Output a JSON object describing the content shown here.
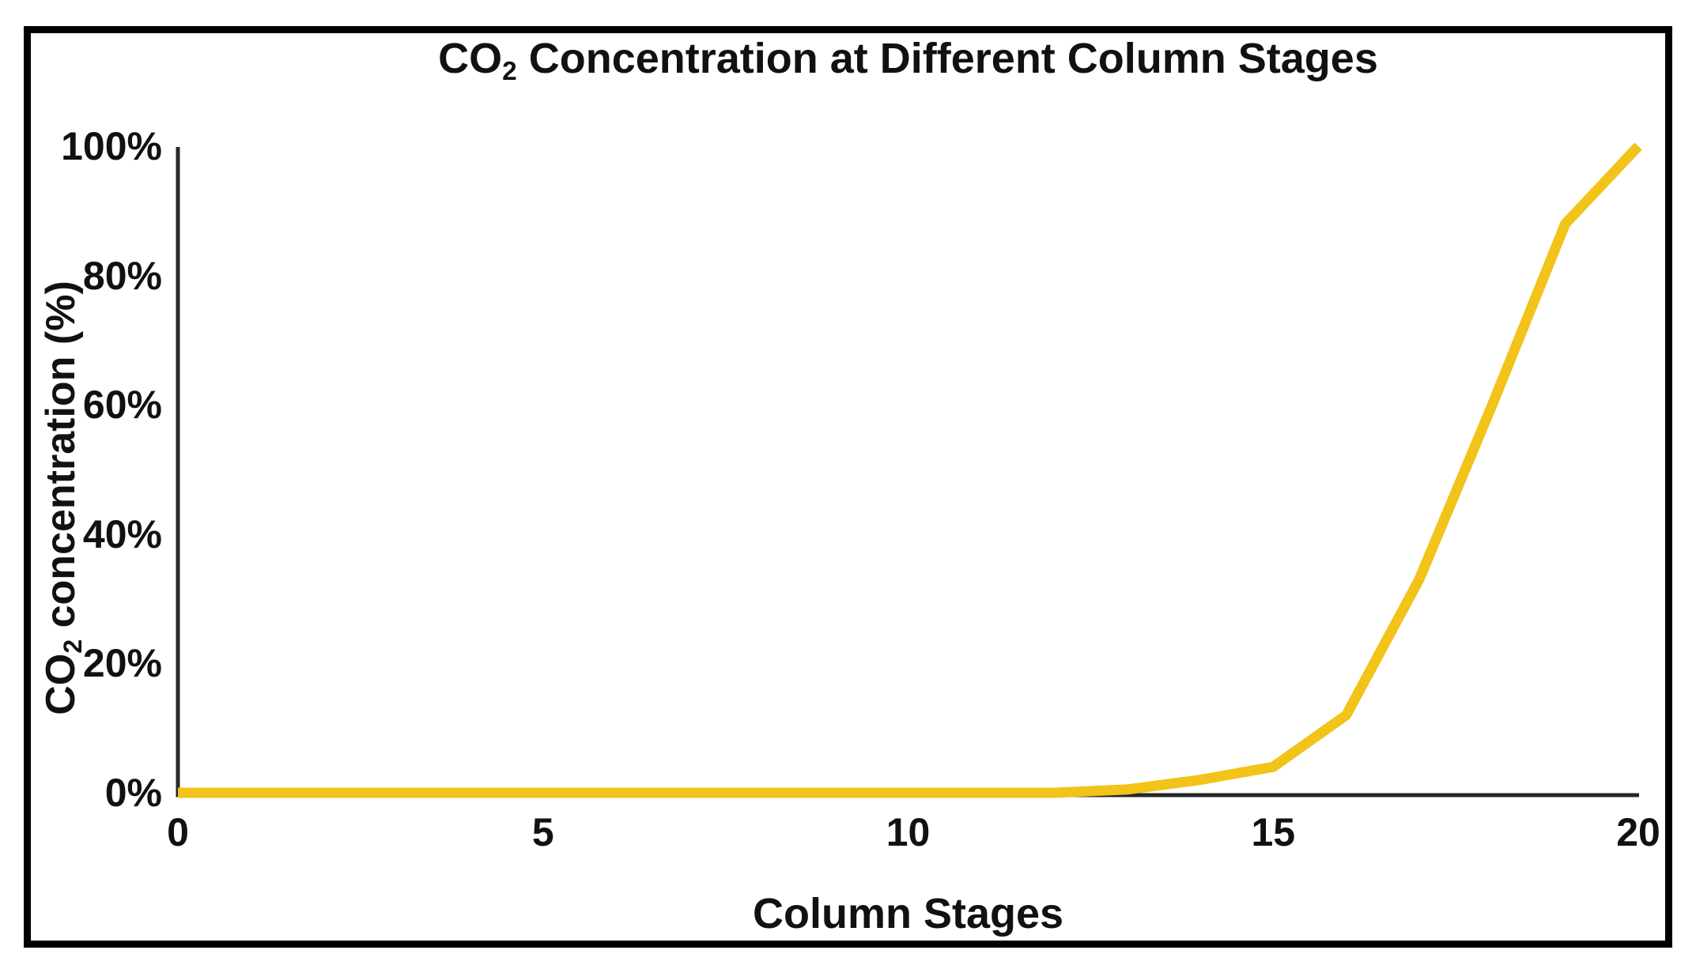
{
  "text": {
    "title": {
      "prefix": "CO",
      "subscript": "2",
      "rest": " Concentration at Different Column Stages"
    },
    "ylabel": {
      "prefix": "CO",
      "subscript": "2",
      "rest": " concentration (%)"
    },
    "xlabel": "Column Stages"
  },
  "axes": {
    "x_ticks": [
      {
        "label": "0",
        "value": 0
      },
      {
        "label": "5",
        "value": 5
      },
      {
        "label": "10",
        "value": 10
      },
      {
        "label": "15",
        "value": 15
      },
      {
        "label": "20",
        "value": 20
      }
    ],
    "y_ticks": [
      {
        "label": "0%",
        "value": 0
      },
      {
        "label": "20%",
        "value": 20
      },
      {
        "label": "40%",
        "value": 40
      },
      {
        "label": "60%",
        "value": 60
      },
      {
        "label": "80%",
        "value": 80
      },
      {
        "label": "100%",
        "value": 100
      }
    ]
  },
  "colors": {
    "line": "#F2C318",
    "axis": "#262626",
    "text": "#111111",
    "border": "#000000",
    "background": "#FFFFFF"
  },
  "chart_data": {
    "type": "line",
    "title": "CO2 Concentration at Different Column Stages",
    "xlabel": "Column Stages",
    "ylabel": "CO2 concentration (%)",
    "x": [
      0,
      1,
      2,
      3,
      4,
      5,
      6,
      7,
      8,
      9,
      10,
      11,
      12,
      13,
      14,
      15,
      16,
      17,
      18,
      19,
      20
    ],
    "series": [
      {
        "name": "CO2 concentration (%)",
        "color": "#F2C318",
        "values": [
          0,
          0,
          0,
          0,
          0,
          0,
          0,
          0,
          0,
          0,
          0,
          0,
          0,
          0.5,
          2,
          4,
          12,
          33,
          60,
          88,
          100
        ]
      }
    ],
    "xlim": [
      0,
      20
    ],
    "ylim": [
      0,
      100
    ],
    "x_tick_values": [
      0,
      5,
      10,
      15,
      20
    ],
    "y_tick_values": [
      0,
      20,
      40,
      60,
      80,
      100
    ],
    "grid": false,
    "legend_position": "none"
  }
}
